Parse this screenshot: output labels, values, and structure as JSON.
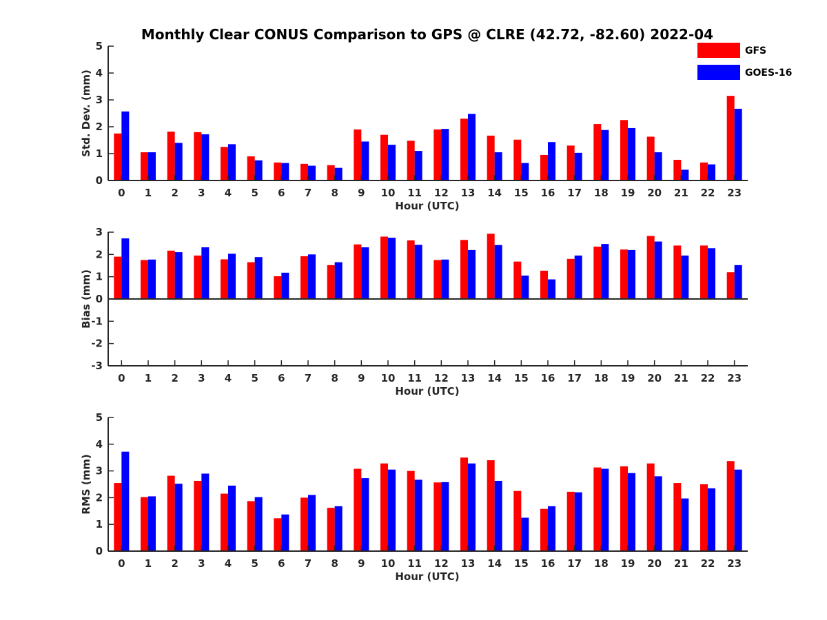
{
  "title": "Monthly Clear CONUS Comparison to GPS @ CLRE (42.72, -82.60) 2022-04",
  "legend": {
    "placement": "top-right",
    "entries": [
      {
        "name": "GFS",
        "color": "#ff0000"
      },
      {
        "name": "GOES-16",
        "color": "#0000ff"
      }
    ]
  },
  "chart_data": [
    {
      "type": "bar",
      "categories": [
        "0",
        "1",
        "2",
        "3",
        "4",
        "5",
        "6",
        "7",
        "8",
        "9",
        "10",
        "11",
        "12",
        "13",
        "14",
        "15",
        "16",
        "17",
        "18",
        "19",
        "20",
        "21",
        "22",
        "23"
      ],
      "xlabel": "Hour (UTC)",
      "ylabel": "Std. Dev. (mm)",
      "ylim": [
        0,
        5
      ],
      "yticks": [
        "0",
        "1",
        "2",
        "3",
        "4",
        "5"
      ],
      "series": [
        {
          "name": "GFS",
          "color": "#ff0000",
          "values": [
            1.75,
            1.05,
            1.82,
            1.8,
            1.25,
            0.9,
            0.67,
            0.62,
            0.57,
            1.9,
            1.7,
            1.48,
            1.9,
            2.3,
            1.67,
            1.52,
            0.95,
            1.3,
            2.1,
            2.25,
            1.63,
            0.77,
            0.67,
            3.15
          ]
        },
        {
          "name": "GOES-16",
          "color": "#0000ff",
          "values": [
            2.57,
            1.05,
            1.4,
            1.72,
            1.35,
            0.75,
            0.65,
            0.55,
            0.47,
            1.45,
            1.33,
            1.1,
            1.92,
            2.48,
            1.05,
            0.65,
            1.43,
            1.03,
            1.88,
            1.95,
            1.05,
            0.4,
            0.6,
            2.67
          ]
        }
      ]
    },
    {
      "type": "bar",
      "categories": [
        "0",
        "1",
        "2",
        "3",
        "4",
        "5",
        "6",
        "7",
        "8",
        "9",
        "10",
        "11",
        "12",
        "13",
        "14",
        "15",
        "16",
        "17",
        "18",
        "19",
        "20",
        "21",
        "22",
        "23"
      ],
      "xlabel": "Hour (UTC)",
      "ylabel": "Bias (mm)",
      "ylim": [
        -3,
        3
      ],
      "yticks": [
        "-3",
        "-2",
        "-1",
        "0",
        "1",
        "2",
        "3"
      ],
      "series": [
        {
          "name": "GFS",
          "color": "#ff0000",
          "values": [
            1.9,
            1.75,
            2.17,
            1.95,
            1.78,
            1.65,
            1.02,
            1.92,
            1.52,
            2.45,
            2.8,
            2.63,
            1.75,
            2.65,
            2.93,
            1.68,
            1.27,
            1.8,
            2.35,
            2.22,
            2.83,
            2.4,
            2.4,
            1.2
          ]
        },
        {
          "name": "GOES-16",
          "color": "#0000ff",
          "values": [
            2.72,
            1.77,
            2.1,
            2.32,
            2.03,
            1.88,
            1.18,
            2.0,
            1.65,
            2.32,
            2.75,
            2.43,
            1.77,
            2.2,
            2.42,
            1.05,
            0.88,
            1.95,
            2.47,
            2.2,
            2.58,
            1.95,
            2.28,
            1.52
          ]
        }
      ]
    },
    {
      "type": "bar",
      "categories": [
        "0",
        "1",
        "2",
        "3",
        "4",
        "5",
        "6",
        "7",
        "8",
        "9",
        "10",
        "11",
        "12",
        "13",
        "14",
        "15",
        "16",
        "17",
        "18",
        "19",
        "20",
        "21",
        "22",
        "23"
      ],
      "xlabel": "Hour (UTC)",
      "ylabel": "RMS (mm)",
      "ylim": [
        0,
        5
      ],
      "yticks": [
        "0",
        "1",
        "2",
        "3",
        "4",
        "5"
      ],
      "series": [
        {
          "name": "GFS",
          "color": "#ff0000",
          "values": [
            2.55,
            2.02,
            2.82,
            2.63,
            2.15,
            1.87,
            1.23,
            2.0,
            1.62,
            3.08,
            3.28,
            3.0,
            2.57,
            3.5,
            3.4,
            2.25,
            1.58,
            2.22,
            3.13,
            3.17,
            3.28,
            2.55,
            2.5,
            3.37
          ]
        },
        {
          "name": "GOES-16",
          "color": "#0000ff",
          "values": [
            3.72,
            2.05,
            2.52,
            2.9,
            2.45,
            2.02,
            1.37,
            2.1,
            1.68,
            2.73,
            3.05,
            2.67,
            2.58,
            3.28,
            2.63,
            1.25,
            1.68,
            2.2,
            3.08,
            2.92,
            2.8,
            1.97,
            2.35,
            3.05
          ]
        }
      ]
    }
  ]
}
